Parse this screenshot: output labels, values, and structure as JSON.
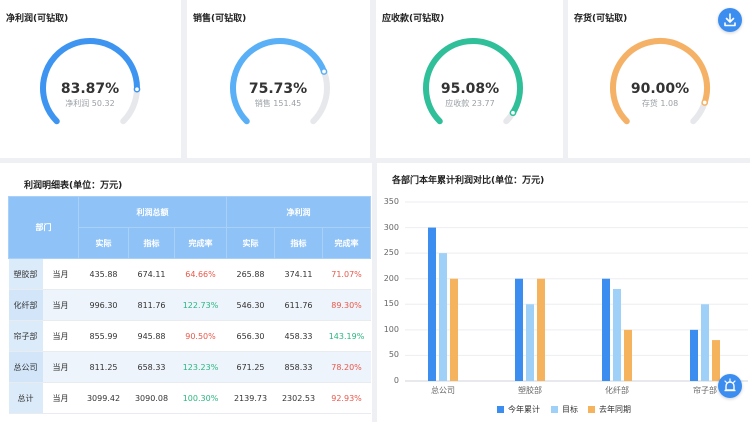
{
  "kpis": [
    {
      "title": "净利润(可钻取)",
      "value_text": "83.87%",
      "sub": "净利润 50.32",
      "pct": 83.87,
      "color": "#3d95f1"
    },
    {
      "title": "销售(可钻取)",
      "value_text": "75.73%",
      "sub": "销售 151.45",
      "pct": 75.73,
      "color": "#5ab0f6"
    },
    {
      "title": "应收款(可钻取)",
      "value_text": "95.08%",
      "sub": "应收款 23.77",
      "pct": 95.08,
      "color": "#2fbf99"
    },
    {
      "title": "存货(可钻取)",
      "value_text": "90.00%",
      "sub": "存货 1.08",
      "pct": 90.0,
      "color": "#f5b266"
    }
  ],
  "table": {
    "title": "利润明细表(单位：万元)",
    "head": {
      "dept": "部门",
      "group1": "利润总额",
      "group2": "净利润",
      "actual": "实际",
      "target": "指标",
      "rate": "完成率"
    },
    "rows": [
      {
        "dept": "塑胶部",
        "period": "当月",
        "a1": "435.88",
        "t1": "674.11",
        "r1": "64.66%",
        "r1c": "red",
        "a2": "265.88",
        "t2": "374.11",
        "r2": "71.07%",
        "r2c": "red"
      },
      {
        "dept": "化纤部",
        "period": "当月",
        "a1": "996.30",
        "t1": "811.76",
        "r1": "122.73%",
        "r1c": "green",
        "a2": "546.30",
        "t2": "611.76",
        "r2": "89.30%",
        "r2c": "red"
      },
      {
        "dept": "帘子部",
        "period": "当月",
        "a1": "855.99",
        "t1": "945.88",
        "r1": "90.50%",
        "r1c": "red",
        "a2": "656.30",
        "t2": "458.33",
        "r2": "143.19%",
        "r2c": "green"
      },
      {
        "dept": "总公司",
        "period": "当月",
        "a1": "811.25",
        "t1": "658.33",
        "r1": "123.23%",
        "r1c": "green",
        "a2": "671.25",
        "t2": "858.33",
        "r2": "78.20%",
        "r2c": "red"
      },
      {
        "dept": "总计",
        "period": "当月",
        "a1": "3099.42",
        "t1": "3090.08",
        "r1": "100.30%",
        "r1c": "green",
        "a2": "2139.73",
        "t2": "2302.53",
        "r2": "92.93%",
        "r2c": "red"
      }
    ]
  },
  "chart_data": {
    "type": "bar",
    "title": "各部门本年累计利润对比(单位：万元)",
    "categories": [
      "总公司",
      "塑胶部",
      "化纤部",
      "帘子部"
    ],
    "ylim": [
      0,
      350
    ],
    "yticks": [
      0,
      50,
      100,
      150,
      200,
      250,
      300,
      350
    ],
    "legend_position": "bottom",
    "series": [
      {
        "name": "今年累计",
        "values": [
          300,
          200,
          200,
          100
        ],
        "color": "#3c8df0"
      },
      {
        "name": "目标",
        "values": [
          250,
          150,
          180,
          150
        ],
        "color": "#9fd0f8"
      },
      {
        "name": "去年同期",
        "values": [
          200,
          200,
          100,
          80
        ],
        "color": "#f5b35e"
      }
    ]
  },
  "icons": {
    "download": "download-icon",
    "float": "alarm-icon"
  }
}
